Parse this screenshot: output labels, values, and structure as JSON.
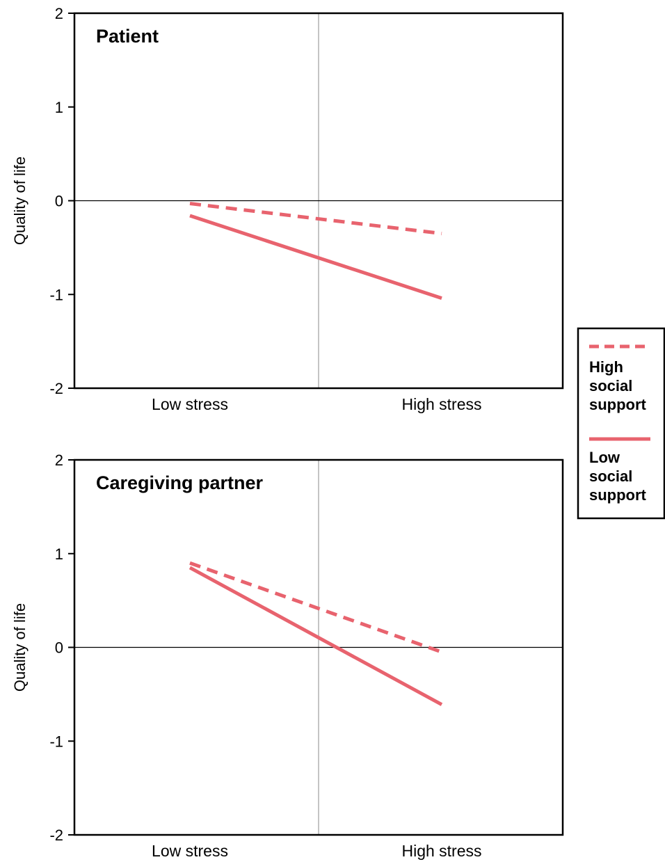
{
  "colors": {
    "series": "#e8636e",
    "axis": "#000000",
    "midline": "#b0b0b0"
  },
  "legend": {
    "placement": "right",
    "entries": [
      {
        "series": "High social support",
        "lines": [
          "High",
          "social",
          "support"
        ],
        "style": "dashed"
      },
      {
        "series": "Low social support",
        "lines": [
          "Low",
          "social",
          "support"
        ],
        "style": "solid"
      }
    ]
  },
  "chart_data": [
    {
      "type": "line",
      "title": "Patient",
      "ylabel": "Quality of life",
      "xlabel": "",
      "categories": [
        "Low stress",
        "High stress"
      ],
      "ylim": [
        -2,
        2
      ],
      "yticks": [
        2,
        1,
        0,
        -1,
        -2
      ],
      "series": [
        {
          "name": "High social support",
          "style": "dashed",
          "values": [
            -0.03,
            -0.35
          ]
        },
        {
          "name": "Low social support",
          "style": "solid",
          "values": [
            -0.16,
            -1.04
          ]
        }
      ]
    },
    {
      "type": "line",
      "title": "Caregiving partner",
      "ylabel": "Quality of life",
      "xlabel": "",
      "categories": [
        "Low stress",
        "High stress"
      ],
      "ylim": [
        -2,
        2
      ],
      "yticks": [
        2,
        1,
        0,
        -1,
        -2
      ],
      "series": [
        {
          "name": "High social support",
          "style": "dashed",
          "values": [
            0.9,
            -0.05
          ]
        },
        {
          "name": "Low social support",
          "style": "solid",
          "values": [
            0.85,
            -0.61
          ]
        }
      ]
    }
  ]
}
